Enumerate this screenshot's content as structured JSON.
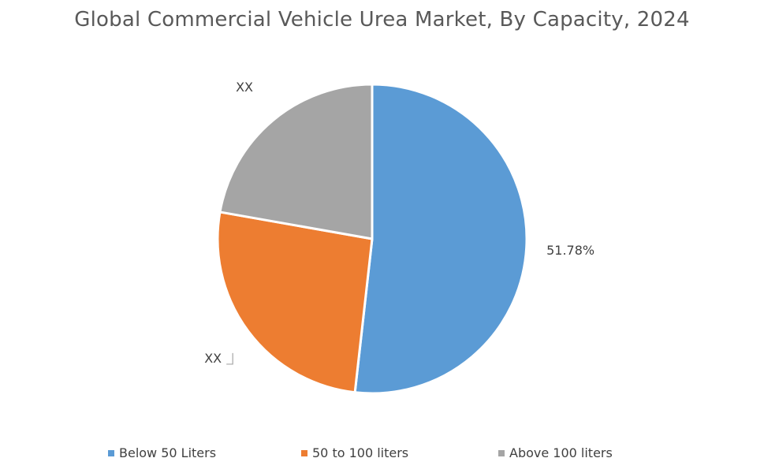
{
  "chart_data": {
    "type": "pie",
    "title": "Global Commercial Vehicle Urea Market, By Capacity, 2024",
    "categories": [
      "Below 50 Liters",
      "50 to 100 liters",
      "Above 100 liters"
    ],
    "values": [
      51.78,
      26.0,
      22.22
    ],
    "data_labels": [
      "51.78%",
      "XX",
      "XX"
    ],
    "colors": [
      "#5B9BD5",
      "#ED7D31",
      "#A5A5A5"
    ],
    "legend_position": "bottom",
    "start_angle": "top",
    "direction": "clockwise"
  }
}
